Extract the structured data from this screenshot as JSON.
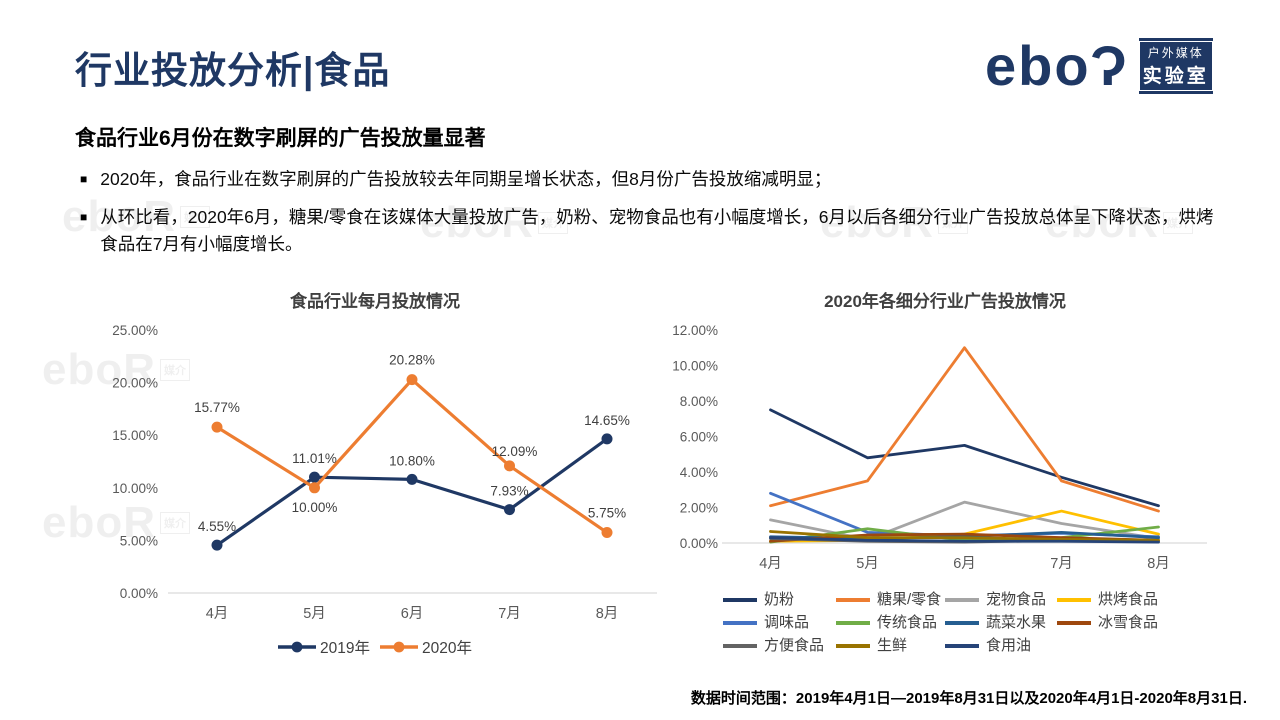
{
  "header": {
    "title": "行业投放分析|食品",
    "logo": {
      "brand": "eboR",
      "text_main": "ebo",
      "text_r": "Ɂ",
      "badge_line1": "户外媒体",
      "badge_line2": "实验室"
    }
  },
  "heading": "食品行业6月份在数字刷屏的广告投放量显著",
  "bullet_marker": "■",
  "bullets": [
    "2020年，食品行业在数字刷屏的广告投放较去年同期呈增长状态，但8月份广告投放缩减明显；",
    "从环比看，2020年6月，糖果/零食在该媒体大量投放广告，奶粉、宠物食品也有小幅度增长，6月以后各细分行业广告投放总体呈下降状态，烘烤食品在7月有小幅度增长。"
  ],
  "watermark": {
    "text": "eboR",
    "tag": "媒介"
  },
  "footer": {
    "note": "数据时间范围：2019年4月1日—2019年8月31日以及2020年4月1日-2020年8月31日."
  },
  "colors": {
    "brand_navy": "#1F3864",
    "accent_orange": "#ED7D31",
    "axis_line": "#D9D9D9",
    "tick_text": "#595959",
    "label_text": "#404040"
  },
  "chart_data": [
    {
      "type": "line",
      "title": "食品行业每月投放情况",
      "categories": [
        "4月",
        "5月",
        "6月",
        "7月",
        "8月"
      ],
      "y_ticks": [
        "0.00%",
        "5.00%",
        "10.00%",
        "15.00%",
        "20.00%",
        "25.00%"
      ],
      "ylim": [
        0,
        25
      ],
      "grid": false,
      "legend_position": "bottom",
      "data_labels": true,
      "series": [
        {
          "name": "2019年",
          "color": "#1F3864",
          "values": [
            4.55,
            11.01,
            10.8,
            7.93,
            14.65
          ],
          "label_offsets": [
            [
              0,
              -14
            ],
            [
              0,
              -14
            ],
            [
              0,
              -14
            ],
            [
              0,
              -14
            ],
            [
              0,
              -14
            ]
          ]
        },
        {
          "name": "2020年",
          "color": "#ED7D31",
          "values": [
            15.77,
            10.0,
            20.28,
            12.09,
            5.75
          ],
          "label_offsets": [
            [
              0,
              -15
            ],
            [
              0,
              24
            ],
            [
              0,
              -15
            ],
            [
              5,
              -10
            ],
            [
              0,
              -15
            ]
          ]
        }
      ]
    },
    {
      "type": "line",
      "title": "2020年各细分行业广告投放情况",
      "categories": [
        "4月",
        "5月",
        "6月",
        "7月",
        "8月"
      ],
      "y_ticks": [
        "0.00%",
        "2.00%",
        "4.00%",
        "6.00%",
        "8.00%",
        "10.00%",
        "12.00%"
      ],
      "ylim": [
        0,
        12
      ],
      "grid": false,
      "legend_position": "bottom",
      "data_labels": false,
      "series": [
        {
          "name": "奶粉",
          "color": "#1F3864",
          "values": [
            7.5,
            4.8,
            5.5,
            3.7,
            2.1
          ]
        },
        {
          "name": "糖果/零食",
          "color": "#ED7D31",
          "values": [
            2.1,
            3.5,
            11.0,
            3.5,
            1.8
          ]
        },
        {
          "name": "宠物食品",
          "color": "#A5A5A5",
          "values": [
            1.3,
            0.2,
            2.3,
            1.1,
            0.25
          ]
        },
        {
          "name": "烘烤食品",
          "color": "#FFC000",
          "values": [
            0.1,
            0.15,
            0.5,
            1.8,
            0.5
          ]
        },
        {
          "name": "调味品",
          "color": "#4472C4",
          "values": [
            2.8,
            0.6,
            0.4,
            0.55,
            0.35
          ]
        },
        {
          "name": "传统食品",
          "color": "#70AD47",
          "values": [
            0.05,
            0.8,
            0.15,
            0.3,
            0.9
          ]
        },
        {
          "name": "蔬菜水果",
          "color": "#255E91",
          "values": [
            0.35,
            0.25,
            0.35,
            0.6,
            0.3
          ]
        },
        {
          "name": "冰雪食品",
          "color": "#9E480E",
          "values": [
            0.1,
            0.45,
            0.5,
            0.3,
            0.15
          ]
        },
        {
          "name": "方便食品",
          "color": "#636363",
          "values": [
            0.25,
            0.1,
            0.05,
            0.15,
            0.1
          ]
        },
        {
          "name": "生鲜",
          "color": "#997300",
          "values": [
            0.65,
            0.3,
            0.3,
            0.2,
            0.15
          ]
        },
        {
          "name": "食用油",
          "color": "#264478",
          "values": [
            0.3,
            0.15,
            0.1,
            0.1,
            0.05
          ]
        }
      ]
    }
  ]
}
